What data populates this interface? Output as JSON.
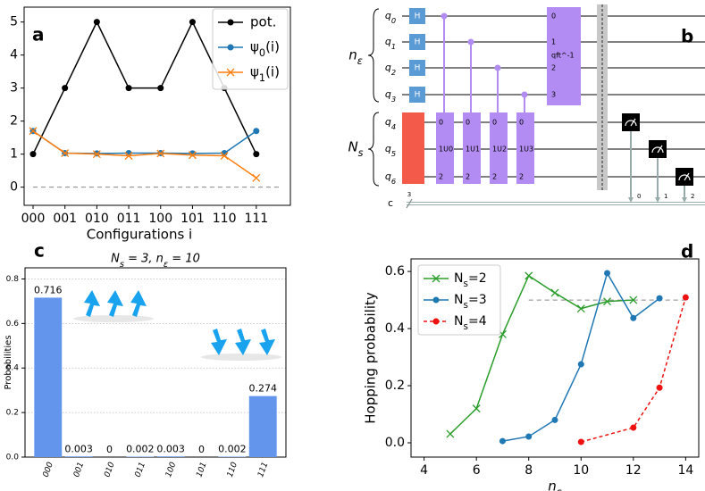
{
  "chart_data": [
    {
      "type": "line",
      "panel_label": "a",
      "xlabel": "Configurations i",
      "categories": [
        "000",
        "001",
        "010",
        "011",
        "100",
        "101",
        "110",
        "111"
      ],
      "series": [
        {
          "name": "pot.",
          "color": "#000000",
          "marker": "o",
          "values": [
            1,
            3,
            5,
            3,
            3,
            5,
            3,
            1
          ]
        },
        {
          "name": "ψ_0(i)",
          "color": "#1f77b4",
          "marker": "o",
          "values": [
            1.7,
            1.03,
            1.02,
            1.03,
            1.03,
            1.02,
            1.03,
            1.7
          ]
        },
        {
          "name": "ψ_1(i)",
          "color": "#ff7f0e",
          "marker": "x",
          "values": [
            1.7,
            1.03,
            1.0,
            0.95,
            1.02,
            0.97,
            0.95,
            0.28
          ]
        }
      ],
      "hline": 0,
      "ylim": [
        -0.55,
        5.45
      ],
      "yticks": [
        0,
        1,
        2,
        3,
        4,
        5
      ],
      "legend": "upper right"
    },
    {
      "type": "bar",
      "panel_label": "c",
      "title": "N_s = 3, n_ε = 10",
      "ylabel": "Probabilities",
      "categories": [
        "000",
        "001",
        "010",
        "011",
        "100",
        "101",
        "110",
        "111"
      ],
      "values": [
        0.716,
        0.003,
        0,
        0.002,
        0.003,
        0,
        0.002,
        0.274
      ],
      "color": "#6495ed",
      "ylim": [
        0,
        0.85
      ],
      "yticks": [
        {
          "value": 0,
          "label": "0.0"
        },
        0.2,
        0.4,
        0.6,
        0.8
      ],
      "grid": true
    },
    {
      "type": "line",
      "panel_label": "d",
      "xlabel": "n_ε",
      "ylabel": "Hopping probability",
      "series": [
        {
          "name": "N_s=2",
          "color": "#2a9d2a",
          "marker": "x",
          "dash": false,
          "x": [
            5,
            6,
            7,
            8,
            9,
            10,
            11,
            12
          ],
          "values": [
            0.031,
            0.12,
            0.38,
            0.585,
            0.525,
            0.47,
            0.495,
            0.5
          ]
        },
        {
          "name": "N_s=3",
          "color": "#1f77b4",
          "marker": "o",
          "dash": false,
          "x": [
            7,
            8,
            9,
            10,
            11,
            12,
            13
          ],
          "values": [
            0.006,
            0.022,
            0.08,
            0.275,
            0.594,
            0.437,
            0.506
          ]
        },
        {
          "name": "N_s=4",
          "color": "#ee1111",
          "marker": "o",
          "dash": true,
          "x": [
            10,
            12,
            13,
            14
          ],
          "values": [
            0.003,
            0.053,
            0.193,
            0.509
          ]
        }
      ],
      "hline": {
        "y": 0.5,
        "xmin": 8,
        "xmax": 14
      },
      "xlim": [
        3.5,
        14.5
      ],
      "xticks": [
        4,
        6,
        8,
        10,
        12,
        14
      ],
      "ylim": [
        -0.05,
        0.644
      ],
      "yticks": [
        {
          "value": 0,
          "label": "0.0"
        },
        0.2,
        0.4,
        0.6
      ],
      "legend": "upper left"
    }
  ],
  "circuit": {
    "panel_label": "b",
    "registers": [
      "n_ε",
      "N_s"
    ],
    "qubits": [
      "q_0",
      "q_1",
      "q_2",
      "q_3",
      "q_4",
      "q_5",
      "q_6"
    ],
    "classical": "c",
    "classical_width": 3,
    "hadamard": [
      "H",
      "H",
      "H",
      "H"
    ],
    "controlled_unitaries": [
      [
        "0",
        "1U0",
        "2"
      ],
      [
        "0",
        "1U1",
        "2"
      ],
      [
        "0",
        "1U2",
        "2"
      ],
      [
        "0",
        "1U3",
        "2"
      ]
    ],
    "qft": [
      "0",
      "1",
      "qft^-1",
      "2",
      "3"
    ],
    "measurement_bits": [
      0,
      1,
      2
    ]
  }
}
